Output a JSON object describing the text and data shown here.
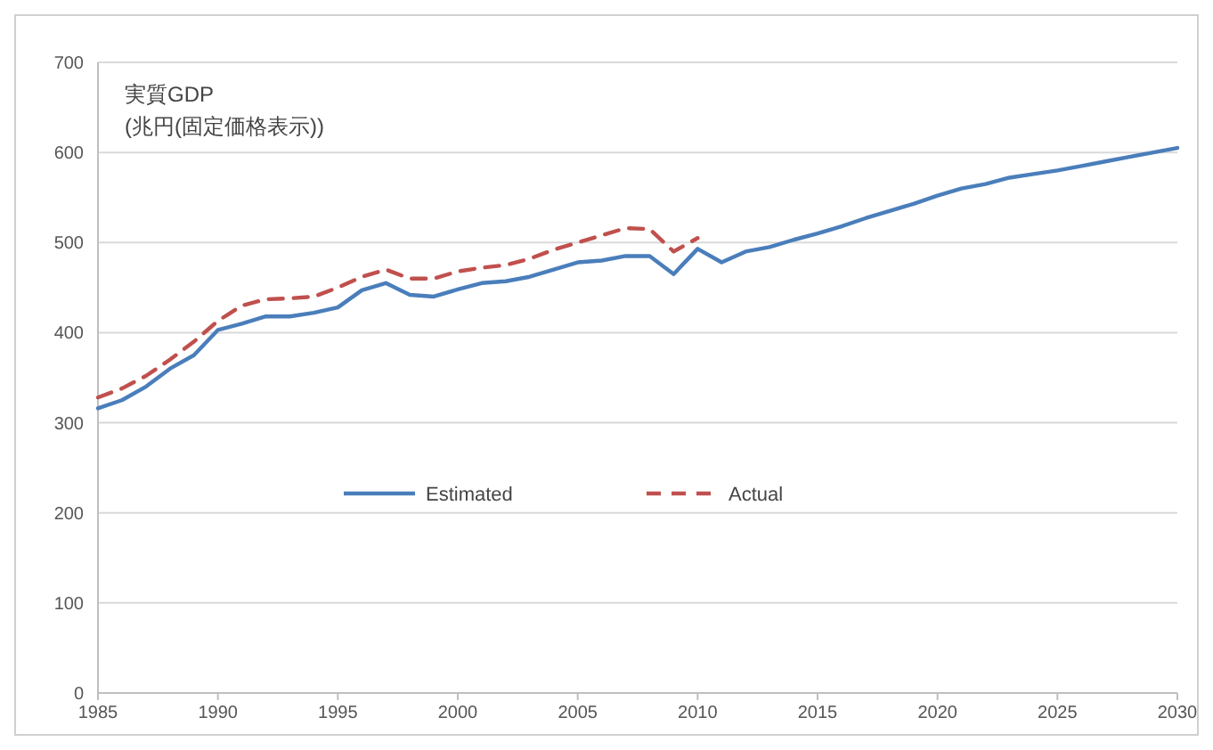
{
  "chart_data": {
    "type": "line",
    "title": "実質GDP",
    "subtitle": "(兆円(固定価格表示))",
    "x": [
      1985,
      1986,
      1987,
      1988,
      1989,
      1990,
      1991,
      1992,
      1993,
      1994,
      1995,
      1996,
      1997,
      1998,
      1999,
      2000,
      2001,
      2002,
      2003,
      2004,
      2005,
      2006,
      2007,
      2008,
      2009,
      2010,
      2011,
      2012,
      2013,
      2014,
      2015,
      2016,
      2017,
      2018,
      2019,
      2020,
      2021,
      2022,
      2023,
      2024,
      2025,
      2026,
      2027,
      2028,
      2029,
      2030
    ],
    "series": [
      {
        "name": "Estimated",
        "color": "#4a7ebb",
        "line_style": "solid",
        "values": [
          316,
          325,
          340,
          360,
          375,
          403,
          410,
          418,
          418,
          422,
          428,
          447,
          455,
          442,
          440,
          448,
          455,
          457,
          462,
          470,
          478,
          480,
          485,
          485,
          465,
          493,
          478,
          490,
          495,
          503,
          510,
          518,
          527,
          535,
          543,
          552,
          560,
          565,
          572,
          576,
          580,
          585,
          590,
          595,
          600,
          605
        ]
      },
      {
        "name": "Actual",
        "color": "#c0504d",
        "line_style": "dashed",
        "values": [
          328,
          338,
          352,
          370,
          390,
          413,
          430,
          437,
          438,
          440,
          450,
          462,
          470,
          460,
          460,
          468,
          472,
          475,
          482,
          492,
          500,
          508,
          516,
          515,
          490,
          505,
          null,
          null,
          null,
          null,
          null,
          null,
          null,
          null,
          null,
          null,
          null,
          null,
          null,
          null,
          null,
          null,
          null,
          null,
          null,
          null
        ]
      }
    ],
    "xlim": [
      1985,
      2030
    ],
    "xticks": [
      1985,
      1990,
      1995,
      2000,
      2005,
      2010,
      2015,
      2020,
      2025,
      2030
    ],
    "ylim": [
      0,
      700
    ],
    "yticks": [
      0,
      100,
      200,
      300,
      400,
      500,
      600,
      700
    ],
    "grid": "y",
    "legend": "bottom",
    "marker": "none"
  }
}
